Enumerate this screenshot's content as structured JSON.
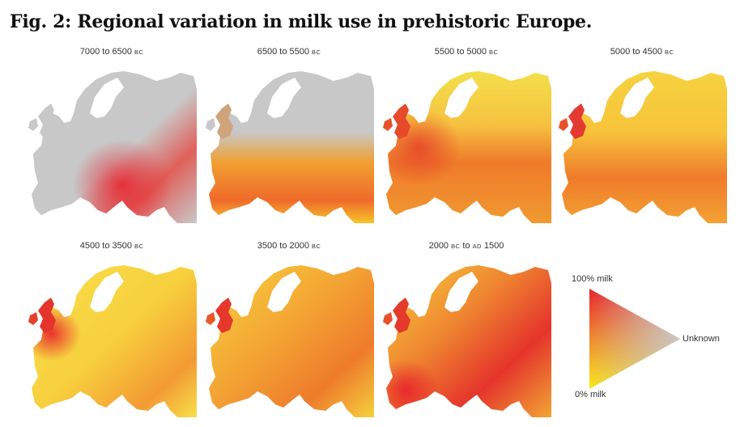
{
  "figure": {
    "title": "Fig. 2: Regional variation in milk use in prehistoric Europe."
  },
  "panels": [
    {
      "id": "p1",
      "from": "7000",
      "mid": " to ",
      "to": "6500",
      "era": "BC",
      "era2": "",
      "tail": ""
    },
    {
      "id": "p2",
      "from": "6500",
      "mid": " to ",
      "to": "5500",
      "era": "BC",
      "era2": "",
      "tail": ""
    },
    {
      "id": "p3",
      "from": "5500",
      "mid": " to ",
      "to": "5000",
      "era": "BC",
      "era2": "",
      "tail": ""
    },
    {
      "id": "p4",
      "from": "5000",
      "mid": " to ",
      "to": "4500",
      "era": "BC",
      "era2": "",
      "tail": ""
    },
    {
      "id": "p5",
      "from": "4500",
      "mid": " to ",
      "to": "3500",
      "era": "BC",
      "era2": "",
      "tail": ""
    },
    {
      "id": "p6",
      "from": "3500",
      "mid": " to ",
      "to": "2000",
      "era": "BC",
      "era2": "",
      "tail": ""
    },
    {
      "id": "p7",
      "from": "2000",
      "mid": "",
      "to": "",
      "era": "BC",
      "era2": "AD",
      "tail": "1500",
      "join": " to "
    }
  ],
  "legend": {
    "top_label": "100% milk",
    "bottom_label": "0% milk",
    "right_label": "Unknown",
    "colors": {
      "full_milk": "#e8202a",
      "no_milk": "#f8e81a",
      "unknown": "#c8c8c8"
    }
  }
}
